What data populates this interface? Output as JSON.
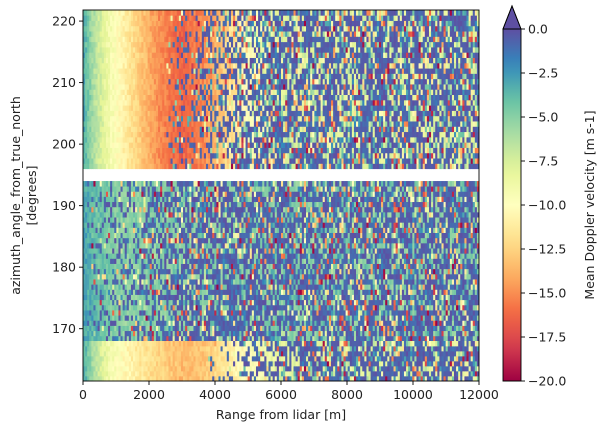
{
  "chart_data": {
    "type": "heatmap",
    "title": "",
    "xlabel": "Range from lidar [m]",
    "ylabel_lines": [
      "azimuth_angle_from_true_north",
      "[degrees]"
    ],
    "colorbar_label": "Mean Doppler velocity [m s-1]",
    "colormap": "Spectral",
    "colormap_stops": [
      "#9e0142",
      "#d53e4f",
      "#f46d43",
      "#fdae61",
      "#fee08b",
      "#ffffbf",
      "#e6f598",
      "#abdda4",
      "#66c2a5",
      "#3288bd",
      "#5e4fa2"
    ],
    "colorbar_extend": "max",
    "xlim": [
      0,
      12000
    ],
    "ylim": [
      161.5,
      221.8
    ],
    "clim": [
      -20,
      0
    ],
    "x_ticks": [
      0,
      2000,
      4000,
      6000,
      8000,
      10000,
      12000
    ],
    "x_tick_labels": [
      "0",
      "2000",
      "4000",
      "6000",
      "8000",
      "10000",
      "12000"
    ],
    "y_ticks": [
      170,
      180,
      190,
      200,
      210,
      220
    ],
    "y_tick_labels": [
      "170",
      "180",
      "190",
      "200",
      "210",
      "220"
    ],
    "colorbar_ticks": [
      0,
      -2.5,
      -5,
      -7.5,
      -10,
      -12.5,
      -15,
      -17.5,
      -20
    ],
    "colorbar_tick_labels": [
      "0.0",
      "−2.5",
      "−5.0",
      "−7.5",
      "−10.0",
      "−12.5",
      "−15.0",
      "−17.5",
      "−20.0"
    ],
    "sectors": [
      {
        "azimuth_range": [
          196,
          221.8
        ],
        "velocity_profile": [
          [
            0,
            -3
          ],
          [
            300,
            -6
          ],
          [
            800,
            -9
          ],
          [
            1500,
            -12
          ],
          [
            2300,
            -15
          ],
          [
            3000,
            -16.5
          ],
          [
            3700,
            -15
          ],
          [
            4200,
            -13
          ],
          [
            5000,
            -10
          ],
          [
            6000,
            -8
          ]
        ],
        "noise_onset_m": 2500
      },
      {
        "azimuth_range": [
          168,
          194
        ],
        "velocity_profile": [
          [
            0,
            -3
          ],
          [
            1000,
            -5
          ]
        ],
        "noise_onset_m": 150
      },
      {
        "azimuth_range": [
          161.5,
          168
        ],
        "velocity_profile": [
          [
            0,
            -3
          ],
          [
            300,
            -6
          ],
          [
            800,
            -9
          ],
          [
            1500,
            -11
          ],
          [
            2300,
            -12.5
          ],
          [
            3000,
            -13.5
          ],
          [
            3700,
            -13
          ],
          [
            4500,
            -11
          ],
          [
            6000,
            -8
          ]
        ],
        "noise_onset_m": 3800
      }
    ]
  }
}
